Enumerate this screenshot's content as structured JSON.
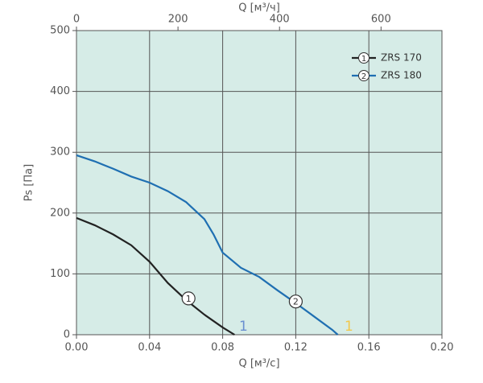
{
  "chart_data": {
    "type": "line",
    "xlabel": "Q [м³/с]",
    "x2label": "Q [м³/ч]",
    "ylabel": "Ps [Па]",
    "xlim": [
      0,
      0.2
    ],
    "xticks": [
      {
        "value": 0,
        "label": "0.00"
      },
      {
        "value": 0.04,
        "label": "0.04"
      },
      {
        "value": 0.08,
        "label": "0.08"
      },
      {
        "value": 0.12,
        "label": "0.12"
      },
      {
        "value": 0.16,
        "label": "0.16"
      },
      {
        "value": 0.2,
        "label": "0.20"
      }
    ],
    "x2lim": [
      0,
      720
    ],
    "x2ticks": [
      0,
      200,
      400,
      600
    ],
    "ylim": [
      0,
      500
    ],
    "yticks": [
      0,
      100,
      200,
      300,
      400,
      500
    ],
    "grid": true,
    "legend": "upper right",
    "background": "#d6ece7",
    "series": [
      {
        "name": "ZRS 170",
        "label": "1",
        "color": "#222222",
        "x": [
          0,
          0.01,
          0.02,
          0.03,
          0.04,
          0.05,
          0.06,
          0.07,
          0.08,
          0.0865
        ],
        "values": [
          192,
          180,
          165,
          147,
          120,
          85,
          57,
          33,
          12,
          0
        ]
      },
      {
        "name": "ZRS 180",
        "label": "2",
        "color": "#1f6fb2",
        "x": [
          0,
          0.01,
          0.02,
          0.03,
          0.04,
          0.05,
          0.06,
          0.07,
          0.075,
          0.08,
          0.09,
          0.1,
          0.11,
          0.12,
          0.13,
          0.14,
          0.143
        ],
        "values": [
          295,
          285,
          273,
          260,
          250,
          236,
          218,
          190,
          165,
          135,
          110,
          95,
          73,
          52,
          30,
          8,
          0
        ]
      }
    ],
    "annotations": [
      {
        "text": "1",
        "color": "#6a8fd0"
      },
      {
        "text": "1",
        "color": "#f2c84b"
      }
    ]
  }
}
